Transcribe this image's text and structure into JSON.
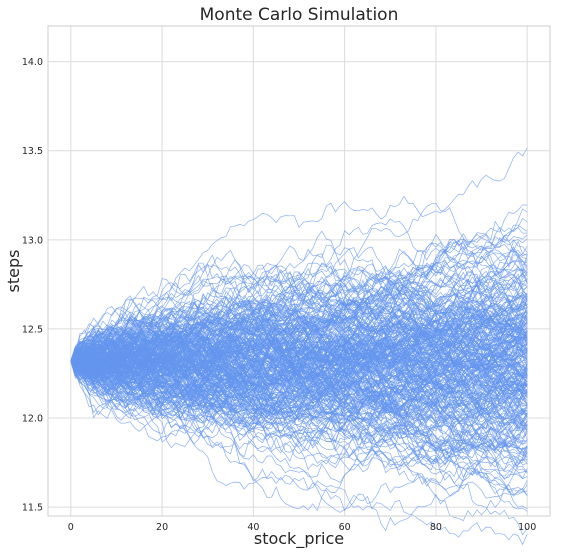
{
  "chart_data": {
    "type": "line",
    "title": "Monte Carlo Simulation",
    "xlabel": "stock_price",
    "ylabel": "steps",
    "xlim": [
      -5,
      105
    ],
    "ylim": [
      11.45,
      14.2
    ],
    "xticks": [
      0,
      20,
      40,
      60,
      80,
      100
    ],
    "yticks": [
      11.5,
      12.0,
      12.5,
      13.0,
      13.5,
      14.0
    ],
    "xtick_labels": [
      "0",
      "20",
      "40",
      "60",
      "80",
      "100"
    ],
    "ytick_labels": [
      "11.5",
      "12.0",
      "12.5",
      "13.0",
      "13.5",
      "14.0"
    ],
    "grid": true,
    "simulation": {
      "n_paths": 300,
      "n_steps": 100,
      "start_value": 12.32,
      "step_std": 0.034
    },
    "line_color": "#6495ed",
    "background": "#ffffff"
  }
}
